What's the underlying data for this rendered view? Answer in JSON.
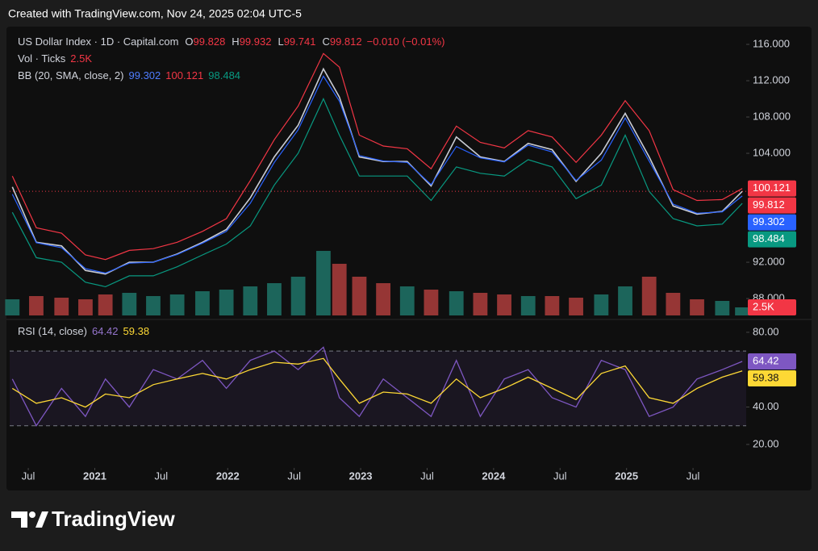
{
  "header": "Created with TradingView.com, Nov 24, 2025 02:04 UTC-5",
  "logo": "TradingView",
  "chart_data": {
    "type": "line",
    "title": "US Dollar Index · 1D · Capital.com",
    "ohlc": [
      {
        "label": "O",
        "value": 99.828
      },
      {
        "label": "H",
        "value": 99.932
      },
      {
        "label": "L",
        "value": 99.741
      },
      {
        "label": "C",
        "value": 99.812
      }
    ],
    "change": "−0.010 (−0.01%)",
    "bb_label": "BB (20, SMA, close, 2)",
    "x": [
      2020.38,
      2020.56,
      2020.75,
      2020.93,
      2021.08,
      2021.26,
      2021.44,
      2021.62,
      2021.81,
      2021.99,
      2022.17,
      2022.35,
      2022.53,
      2022.72,
      2022.84,
      2022.99,
      2023.17,
      2023.35,
      2023.53,
      2023.72,
      2023.9,
      2024.08,
      2024.26,
      2024.44,
      2024.62,
      2024.81,
      2024.99,
      2025.17,
      2025.35,
      2025.53,
      2025.72,
      2025.87
    ],
    "xlim": [
      2020.36,
      2025.9
    ],
    "xticks": [
      {
        "value": 2020.5,
        "label": "Jul"
      },
      {
        "value": 2021,
        "label": "2021"
      },
      {
        "value": 2021.5,
        "label": "Jul"
      },
      {
        "value": 2022,
        "label": "2022"
      },
      {
        "value": 2022.5,
        "label": "Jul"
      },
      {
        "value": 2023,
        "label": "2023"
      },
      {
        "value": 2023.5,
        "label": "Jul"
      },
      {
        "value": 2024,
        "label": "2024"
      },
      {
        "value": 2024.5,
        "label": "Jul"
      },
      {
        "value": 2025,
        "label": "2025"
      },
      {
        "value": 2025.5,
        "label": "Jul"
      }
    ],
    "ylim": [
      85.96,
      117.78
    ],
    "yticks": [
      {
        "value": 116,
        "label": "116.000"
      },
      {
        "value": 112,
        "label": "112.000"
      },
      {
        "value": 108,
        "label": "108.000"
      },
      {
        "value": 104,
        "label": "104.000"
      },
      {
        "value": 92,
        "label": "92.000"
      },
      {
        "value": 88,
        "label": "88.000"
      }
    ],
    "series": [
      {
        "color": "#c9ccd4",
        "values": [
          100.3,
          94.2,
          93.8,
          91.1,
          90.7,
          92.0,
          92.0,
          92.9,
          94.2,
          95.6,
          99.1,
          103.6,
          107.1,
          113.3,
          110.2,
          103.6,
          103.1,
          103.1,
          100.4,
          105.8,
          103.6,
          103.1,
          105.1,
          104.4,
          100.9,
          104.0,
          108.4,
          103.6,
          98.2,
          97.3,
          97.6,
          99.812
        ]
      },
      {
        "color": "#2962ff",
        "values": [
          99.5,
          94.15,
          93.6,
          91.3,
          90.8,
          91.9,
          92.0,
          92.85,
          94.1,
          95.4,
          98.5,
          103.0,
          106.6,
          112.5,
          109.75,
          103.75,
          103.15,
          103.0,
          100.55,
          104.75,
          103.5,
          103.05,
          104.9,
          104.15,
          101.0,
          103.25,
          107.9,
          103.15,
          98.4,
          97.4,
          97.55,
          99.302
        ]
      },
      {
        "color": "#f23645",
        "values": [
          101.5,
          95.8,
          95.2,
          92.8,
          92.3,
          93.3,
          93.5,
          94.2,
          95.4,
          96.8,
          101.0,
          105.5,
          109.2,
          115.0,
          113.5,
          106.0,
          104.8,
          104.5,
          102.3,
          107.0,
          105.2,
          104.6,
          106.5,
          105.8,
          103.0,
          106.0,
          109.8,
          106.5,
          100.0,
          98.8,
          98.9,
          100.121
        ]
      },
      {
        "color": "#089981",
        "values": [
          97.5,
          92.5,
          92.0,
          89.8,
          89.3,
          90.5,
          90.5,
          91.5,
          92.8,
          94.0,
          96.0,
          100.5,
          104.0,
          110.0,
          106.0,
          101.5,
          101.5,
          101.5,
          98.8,
          102.5,
          101.8,
          101.5,
          103.3,
          102.5,
          99.0,
          100.5,
          106.0,
          99.8,
          96.8,
          96.0,
          96.2,
          98.484
        ]
      }
    ],
    "volume": {
      "name": "Vol · Ticks",
      "up_color": "#1f7a6e",
      "down_color": "#b8403f",
      "values": [
        5000,
        6000,
        5500,
        5000,
        6500,
        7000,
        6000,
        6500,
        7500,
        8000,
        9000,
        10000,
        12000,
        20000,
        16000,
        12000,
        10000,
        9000,
        8000,
        7500,
        7000,
        6500,
        6000,
        6000,
        5500,
        6500,
        9000,
        12000,
        7000,
        5000,
        4500,
        2500
      ],
      "last_label": "2.5K",
      "y2lim": [
        0,
        30000
      ]
    },
    "rsi": {
      "name": "RSI (14, close)",
      "ylim": [
        9.6,
        86.0
      ],
      "yticks": [
        {
          "value": 80,
          "label": "80.00"
        },
        {
          "value": 40,
          "label": "40.00"
        },
        {
          "value": 20,
          "label": "20.00"
        }
      ],
      "bands": [
        70,
        30
      ],
      "series": [
        {
          "color": "#7e57c2",
          "values": [
            55,
            30,
            50,
            35,
            55,
            40,
            60,
            55,
            65,
            50,
            65,
            70,
            60,
            72,
            45,
            35,
            55,
            45,
            35,
            65,
            35,
            55,
            60,
            45,
            40,
            65,
            60,
            35,
            40,
            55,
            60,
            64.42
          ]
        },
        {
          "color": "#fdd835",
          "values": [
            50,
            42,
            45,
            40,
            47,
            45,
            52,
            55,
            58,
            55,
            60,
            64,
            63,
            66,
            55,
            42,
            48,
            47,
            42,
            55,
            45,
            50,
            56,
            50,
            44,
            58,
            62,
            45,
            42,
            50,
            56,
            59.38
          ]
        }
      ]
    }
  }
}
